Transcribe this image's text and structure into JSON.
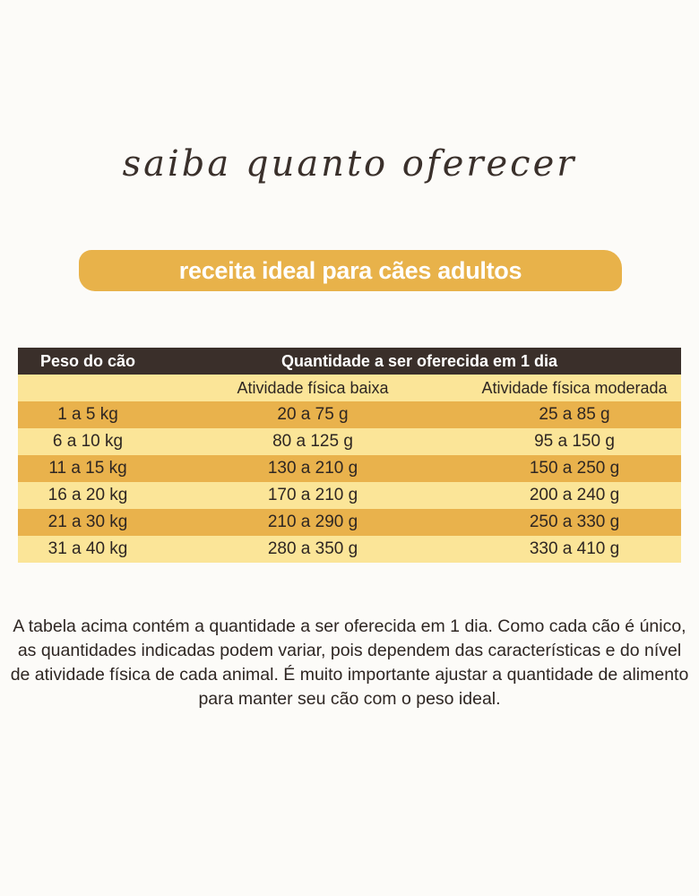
{
  "heading": "saiba quanto oferecer",
  "banner": "receita ideal para cães adultos",
  "table": {
    "col_weight": "Peso do cão",
    "col_quantity": "Quantidade a ser oferecida em 1 dia",
    "sub_low": "Atividade física baixa",
    "sub_moderate": "Atividade física moderada",
    "rows": [
      {
        "weight": "1 a 5 kg",
        "low": "20 a 75 g",
        "moderate": "25 a 85 g"
      },
      {
        "weight": "6 a 10  kg",
        "low": "80 a 125 g",
        "moderate": "95 a 150 g"
      },
      {
        "weight": "11 a 15  kg",
        "low": "130 a 210 g",
        "moderate": "150 a 250 g"
      },
      {
        "weight": "16 a 20  kg",
        "low": "170 a 210 g",
        "moderate": "200 a 240 g"
      },
      {
        "weight": "21 a 30  kg",
        "low": "210 a 290 g",
        "moderate": "250 a 330 g"
      },
      {
        "weight": "31 a 40  kg",
        "low": "280 a 350 g",
        "moderate": "330 a 410 g"
      }
    ]
  },
  "note": "A tabela acima contém a quantidade a ser oferecida em 1 dia. Como cada cão é único, as quantidades indicadas podem variar, pois dependem das características e do nível de atividade física de cada animal. É muito importante ajustar a quantidade de alimento para manter seu cão com o peso ideal."
}
